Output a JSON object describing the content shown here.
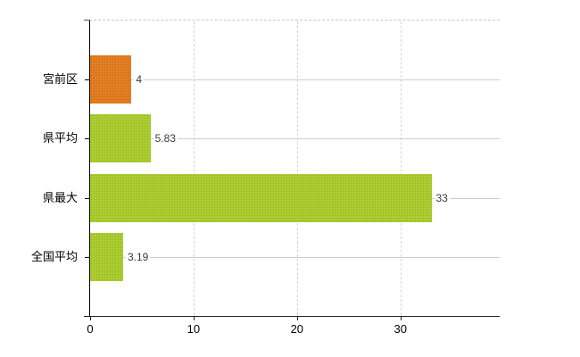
{
  "chart_data": {
    "type": "bar",
    "orientation": "horizontal",
    "title": "",
    "xlabel": "",
    "ylabel": "",
    "categories": [
      "宮前区",
      "県平均",
      "県最大",
      "全国平均"
    ],
    "values": [
      4,
      5.83,
      33,
      3.19
    ],
    "value_labels": [
      "4",
      "5.83",
      "33",
      "3.19"
    ],
    "bar_colors": [
      "#e0791e",
      "#a7cb2d",
      "#a7cb2d",
      "#a7cb2d"
    ],
    "x_ticks": [
      "0",
      "10",
      "20",
      "30"
    ],
    "x_tick_values": [
      0,
      10,
      20,
      30
    ],
    "xlim": [
      0,
      39.6
    ],
    "grid": true,
    "legend": "none",
    "colors": {
      "axis": "#222222",
      "gridline_h": "#cfcfcf",
      "gridline_v": "#d4d4d4",
      "top_border": "#c9c9c9",
      "label_text": "#000000",
      "value_text": "#3a3a3a",
      "background": "#ffffff"
    }
  }
}
